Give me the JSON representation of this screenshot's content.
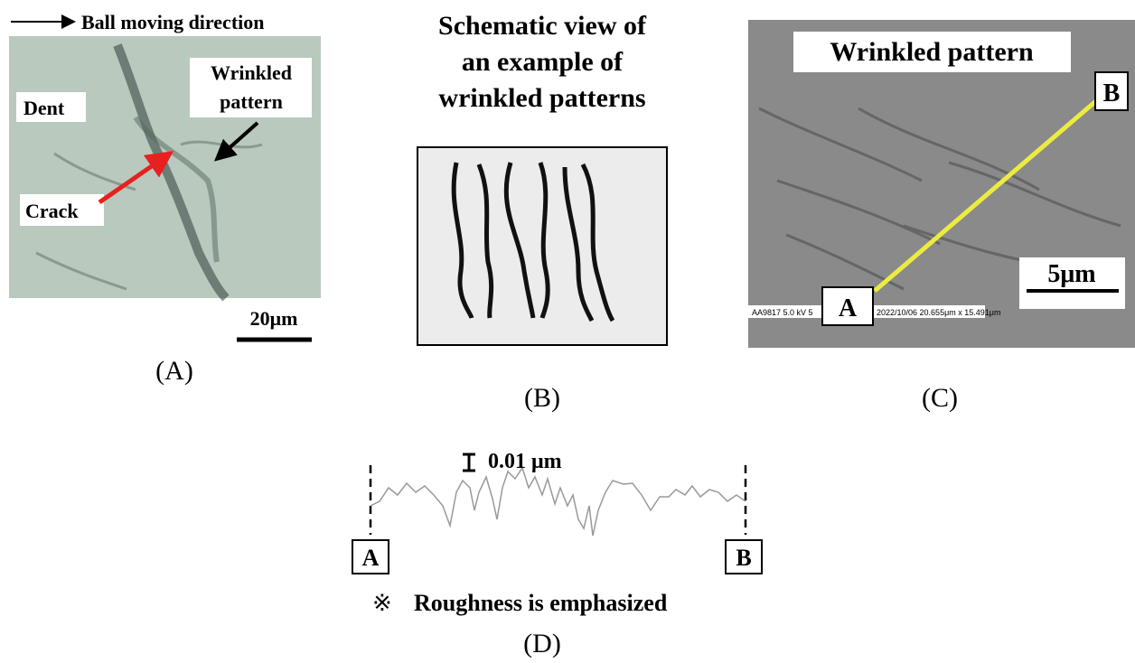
{
  "panel_a": {
    "arrow_label": "Ball moving direction",
    "dent": "Dent",
    "wrinkled_line1": "Wrinkled",
    "wrinkled_line2": "pattern",
    "crack": "Crack",
    "scale": "20μm",
    "caption": "(A)"
  },
  "panel_b": {
    "title_line1": "Schematic view of",
    "title_line2": "an example of",
    "title_line3": "wrinkled  patterns",
    "caption": "(B)"
  },
  "panel_c": {
    "label": "Wrinkled  pattern",
    "point_b": "B",
    "point_a": "A",
    "scale": "5μm",
    "info_left": "AA9817  5.0 kV  5",
    "info_right": "2022/10/06  20.655μm x 15.491μm",
    "caption": "(C)"
  },
  "panel_d": {
    "scale": "0.01 μm",
    "point_a": "A",
    "point_b": "B",
    "note_mark": "※",
    "note": "Roughness is emphasized",
    "caption": "(D)"
  }
}
